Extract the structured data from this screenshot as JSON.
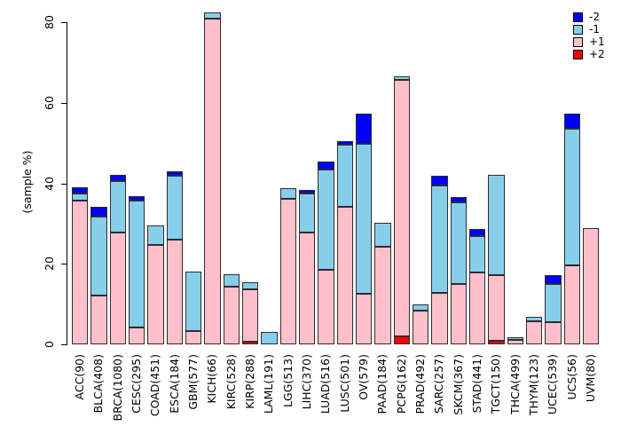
{
  "chart_data": {
    "type": "bar",
    "variant": "stacked",
    "title": "",
    "xlabel": "",
    "ylabel": "(sample %)",
    "ylim": [
      0,
      83
    ],
    "yticks": [
      0,
      20,
      40,
      60,
      80
    ],
    "grid": false,
    "legend_position": "top-right",
    "legend": [
      {
        "label": "-2",
        "color": "#0000FF"
      },
      {
        "label": "-1",
        "color": "#87CEEB"
      },
      {
        "label": "+1",
        "color": "#FFC0CB"
      },
      {
        "label": "+2",
        "color": "#FF0000"
      }
    ],
    "stack_order_bottom_to_top": [
      "+2",
      "+1",
      "-1",
      "-2"
    ],
    "categories": [
      "ACC(90)",
      "BLCA(408)",
      "BRCA(1080)",
      "CESC(295)",
      "COAD(451)",
      "ESCA(184)",
      "GBM(577)",
      "KICH(66)",
      "KIRC(528)",
      "KIRP(288)",
      "LAML(191)",
      "LGG(513)",
      "LIHC(370)",
      "LUAD(516)",
      "LUSC(501)",
      "OV(579)",
      "PAAD(184)",
      "PCPG(162)",
      "PRAD(492)",
      "SARC(257)",
      "SKCM(367)",
      "STAD(441)",
      "TGCT(150)",
      "THCA(499)",
      "THYM(123)",
      "UCEC(539)",
      "UCS(56)",
      "UVM(80)"
    ],
    "series": [
      {
        "name": "+2",
        "color": "#FF0000",
        "values": [
          0,
          0,
          0,
          0,
          0,
          0,
          0,
          0,
          0,
          0.7,
          0,
          0,
          0,
          0,
          0,
          0,
          0,
          2.0,
          0,
          0,
          0,
          0,
          0.9,
          0,
          0,
          0,
          0,
          0
        ]
      },
      {
        "name": "+1",
        "color": "#FFC0CB",
        "values": [
          35.6,
          12.2,
          27.7,
          4.2,
          24.6,
          26.1,
          3.3,
          80.8,
          14.4,
          12.9,
          0,
          36.2,
          27.7,
          18.5,
          34.1,
          12.6,
          24.2,
          63.7,
          8.3,
          12.8,
          14.9,
          17.8,
          16.3,
          1.1,
          5.7,
          5.4,
          19.6,
          28.8
        ]
      },
      {
        "name": "-1",
        "color": "#87CEEB",
        "values": [
          1.8,
          19.5,
          12.8,
          31.4,
          4.9,
          15.7,
          14.8,
          1.6,
          3.1,
          1.8,
          3.0,
          2.6,
          9.8,
          25.0,
          15.4,
          37.2,
          6.0,
          0.9,
          1.6,
          26.6,
          20.3,
          9.1,
          24.9,
          0.7,
          1.1,
          9.6,
          34.0,
          0
        ]
      },
      {
        "name": "-2",
        "color": "#0000FF",
        "values": [
          1.6,
          2.4,
          1.7,
          1.1,
          0,
          1.1,
          0,
          0,
          0,
          0,
          0,
          0,
          0.8,
          1.8,
          0.9,
          7.6,
          0,
          0,
          0,
          2.4,
          1.3,
          1.7,
          0,
          0,
          0,
          2.1,
          3.6,
          0
        ]
      }
    ]
  }
}
